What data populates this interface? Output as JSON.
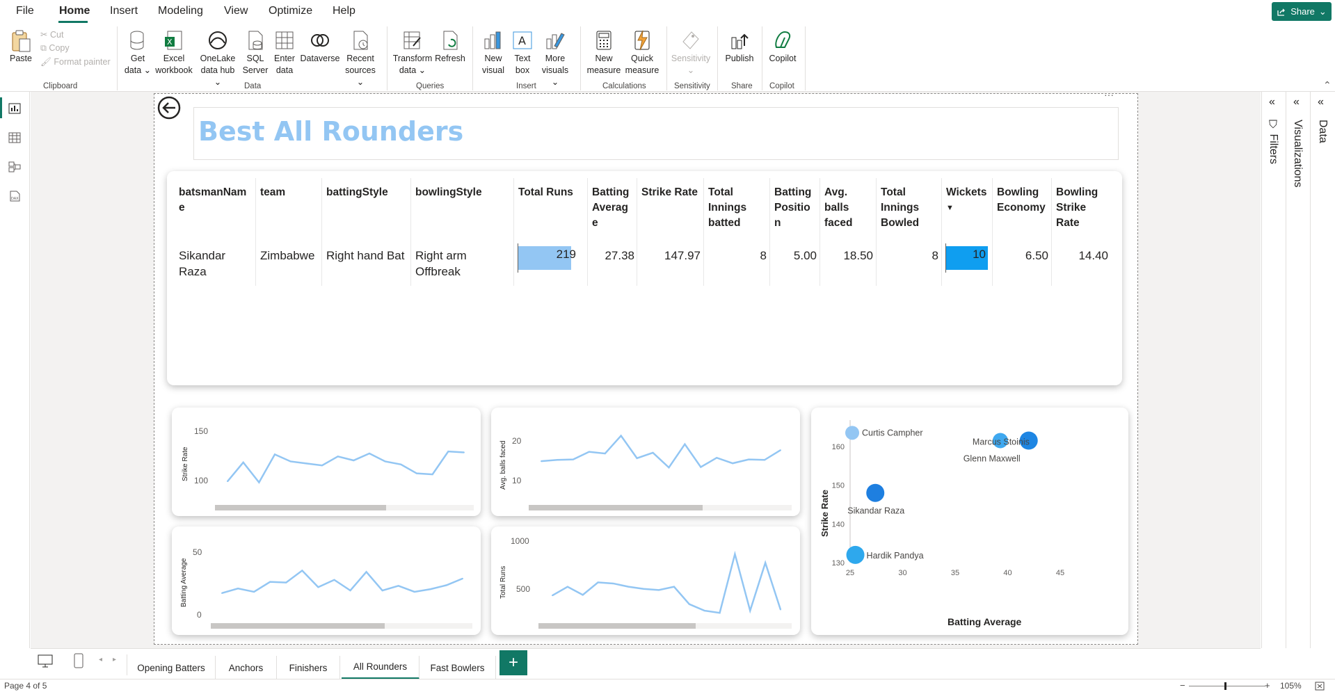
{
  "menu": {
    "items": [
      "File",
      "Home",
      "Insert",
      "Modeling",
      "View",
      "Optimize",
      "Help"
    ],
    "share_label": "Share"
  },
  "ribbon": {
    "clipboard": {
      "paste": "Paste",
      "cut": "Cut",
      "copy": "Copy",
      "format_painter": "Format painter",
      "group": "Clipboard"
    },
    "data": {
      "get_data": [
        "Get",
        "data"
      ],
      "excel": [
        "Excel",
        "workbook"
      ],
      "onelake": [
        "OneLake",
        "data hub"
      ],
      "sql": [
        "SQL",
        "Server"
      ],
      "enter": [
        "Enter",
        "data"
      ],
      "dataverse": "Dataverse",
      "recent": [
        "Recent",
        "sources"
      ],
      "group": "Data"
    },
    "queries": {
      "transform": [
        "Transform",
        "data"
      ],
      "refresh": "Refresh",
      "group": "Queries"
    },
    "insert": {
      "new_visual": [
        "New",
        "visual"
      ],
      "text_box": [
        "Text",
        "box"
      ],
      "more_visuals": [
        "More",
        "visuals"
      ],
      "group": "Insert"
    },
    "calculations": {
      "new_measure": [
        "New",
        "measure"
      ],
      "quick_measure": [
        "Quick",
        "measure"
      ],
      "group": "Calculations"
    },
    "sensitivity": {
      "label": "Sensitivity",
      "group": "Sensitivity"
    },
    "share": {
      "publish": "Publish",
      "group": "Share"
    },
    "copilot": {
      "label": "Copilot",
      "group": "Copilot"
    }
  },
  "panes": {
    "filters": "Filters",
    "visualizations": "Visualizations",
    "data": "Data"
  },
  "report": {
    "title": "Best All Rounders",
    "more_options": "···",
    "table": {
      "headers": [
        [
          "batsmanNam",
          "e"
        ],
        [
          "team"
        ],
        [
          "battingStyle"
        ],
        [
          "bowlingStyle"
        ],
        [
          "Total Runs"
        ],
        [
          "Batting",
          "Averag",
          "e"
        ],
        [
          "Strike Rate"
        ],
        [
          "Total",
          "Innings",
          "batted"
        ],
        [
          "Batting",
          "Positio",
          "n"
        ],
        [
          "Avg.",
          "balls",
          "faced"
        ],
        [
          "Total",
          "Innings",
          "Bowled"
        ],
        [
          "Wickets"
        ],
        [
          "Bowling",
          "Economy"
        ],
        [
          "Bowling",
          "Strike",
          "Rate"
        ]
      ],
      "row": {
        "batsmanName": [
          "Sikandar",
          "Raza"
        ],
        "team": "Zimbabwe",
        "battingStyle": "Right hand Bat",
        "bowlingStyle": [
          "Right arm",
          "Offbreak"
        ],
        "totalRuns": "219",
        "battingAverage": "27.38",
        "strikeRate": "147.97",
        "inningsBatted": "8",
        "battingPosition": "5.00",
        "avgBallsFaced": "18.50",
        "inningsBowled": "8",
        "wickets": "10",
        "bowlingEconomy": "6.50",
        "bowlingStrikeRate": "14.40"
      },
      "colors": {
        "runs_bar": "#93c6f3",
        "wickets_bar": "#0f9ef0"
      }
    }
  },
  "chart_data": [
    {
      "type": "line",
      "ylabel": "Strike Rate",
      "yticks": [
        "150",
        "100"
      ],
      "ylim": [
        80,
        165
      ],
      "values": [
        98,
        117,
        97,
        125,
        118,
        116,
        114,
        123,
        119,
        126,
        118,
        115,
        106,
        105,
        128,
        127
      ]
    },
    {
      "type": "line",
      "ylabel": "Avg. balls faced",
      "yticks": [
        "20",
        "10"
      ],
      "ylim": [
        4,
        24
      ],
      "values": [
        13,
        13.3,
        13.4,
        15.2,
        14.8,
        19,
        13.7,
        15,
        11.5,
        17,
        11.6,
        13.8,
        12.5,
        13.4,
        13.3,
        15.6
      ]
    },
    {
      "type": "line",
      "ylabel": "Batting Average",
      "yticks": [
        "50",
        "0"
      ],
      "ylim": [
        -5,
        60
      ],
      "values": [
        15,
        18.5,
        16,
        23.5,
        23,
        32,
        19.5,
        25,
        17,
        31,
        17,
        20.5,
        16,
        18,
        21,
        26
      ]
    },
    {
      "type": "line",
      "ylabel": "Total Runs",
      "yticks": [
        "1000",
        "500"
      ],
      "ylim": [
        250,
        1030
      ],
      "values": [
        460,
        540,
        465,
        580,
        570,
        540,
        520,
        510,
        540,
        380,
        320,
        300,
        840,
        320,
        760,
        330
      ]
    },
    {
      "type": "scatter",
      "xlabel": "Batting Average",
      "ylabel": "Strike Rate",
      "xlim": [
        25,
        45
      ],
      "ylim": [
        130,
        165
      ],
      "xticks": [
        25,
        30,
        35,
        40,
        45
      ],
      "yticks": [
        130,
        140,
        150,
        160
      ],
      "points": [
        {
          "name": "Curtis Campher",
          "x": 25.2,
          "y": 163.5,
          "color": "#93c6f3",
          "r": 10
        },
        {
          "name": "Marcus Stoinis",
          "x": 39.3,
          "y": 161.5,
          "color": "#3fa8ef",
          "r": 11
        },
        {
          "name": "Glenn Maxwell",
          "x": 42,
          "y": 161.5,
          "color": "#1e86e3",
          "r": 13
        },
        {
          "name": "Sikandar Raza",
          "x": 27.4,
          "y": 148,
          "color": "#1e7fe0",
          "r": 13
        },
        {
          "name": "Hardik Pandya",
          "x": 25.5,
          "y": 132,
          "color": "#2ea8ed",
          "r": 13
        }
      ]
    }
  ],
  "tabs": {
    "items": [
      "Opening Batters",
      "Anchors",
      "Finishers",
      "All Rounders",
      "Fast Bowlers"
    ],
    "active": "All Rounders",
    "add": "+"
  },
  "status": {
    "page": "Page 4 of 5",
    "zoom": "105%"
  }
}
